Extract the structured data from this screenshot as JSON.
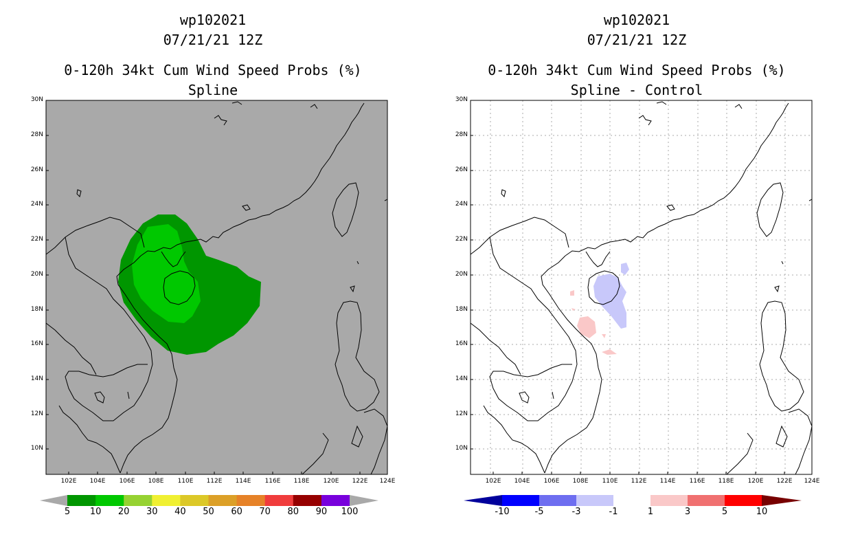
{
  "left_panel": {
    "title_line1": "wp102021",
    "title_line2": "07/21/21 12Z",
    "title_line3": "0-120h 34kt Cum Wind Speed Probs (%)",
    "title_line4": "Spline",
    "background_color": "#a9a9a9",
    "colorbar": {
      "colors": [
        "#009600",
        "#00c800",
        "#96d232",
        "#f0f032",
        "#dcc828",
        "#dca028",
        "#e68228",
        "#f03c3c",
        "#960000",
        "#7800dc"
      ],
      "labels": [
        "5",
        "10",
        "20",
        "30",
        "40",
        "50",
        "60",
        "70",
        "80",
        "90",
        "100"
      ]
    }
  },
  "right_panel": {
    "title_line1": "wp102021",
    "title_line2": "07/21/21 12Z",
    "title_line3": "0-120h 34kt Cum Wind Speed Probs (%)",
    "title_line4": "Spline - Control",
    "background_color": "#ffffff",
    "colorbar": {
      "colors": [
        "#0000ff",
        "#6e6ef0",
        "#c8c8fa",
        "#ffffff",
        "#fac8c8",
        "#f07070",
        "#ff0000"
      ],
      "end_colors": [
        "#00009c",
        "#780000"
      ],
      "labels": [
        "-10",
        "-5",
        "-3",
        "-1",
        "1",
        "3",
        "5",
        "10"
      ]
    }
  },
  "axes": {
    "lat_labels": [
      "30N",
      "28N",
      "26N",
      "24N",
      "22N",
      "20N",
      "18N",
      "16N",
      "14N",
      "12N",
      "10N"
    ],
    "lon_labels": [
      "102E",
      "104E",
      "106E",
      "108E",
      "110E",
      "112E",
      "114E",
      "116E",
      "118E",
      "120E",
      "122E",
      "124E"
    ]
  }
}
